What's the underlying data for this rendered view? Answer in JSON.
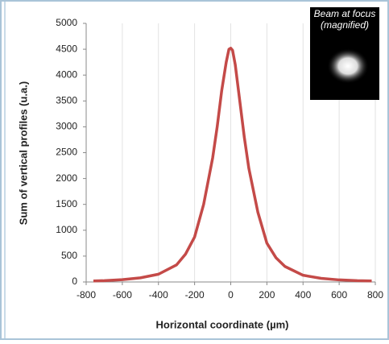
{
  "chart_data": {
    "type": "line",
    "xlabel": "Horizontal coordinate  (µm)",
    "ylabel": "Sum of vertical profiles (u.a.)",
    "inset_label": [
      "Beam at focus",
      "(magnified)"
    ],
    "x": [
      -760,
      -700,
      -600,
      -500,
      -400,
      -300,
      -250,
      -200,
      -150,
      -100,
      -75,
      -50,
      -25,
      -10,
      0,
      10,
      25,
      50,
      75,
      100,
      150,
      200,
      250,
      300,
      400,
      500,
      600,
      700,
      780
    ],
    "series": [
      {
        "color": "#c44a48",
        "values": [
          20,
          25,
          45,
          80,
          150,
          330,
          540,
          870,
          1500,
          2400,
          3000,
          3700,
          4250,
          4500,
          4520,
          4480,
          4200,
          3500,
          2800,
          2200,
          1350,
          750,
          470,
          300,
          130,
          70,
          40,
          25,
          20
        ]
      }
    ],
    "xlim": [
      -800,
      800
    ],
    "xticks": [
      -800,
      -600,
      -400,
      -200,
      0,
      200,
      400,
      600,
      800
    ],
    "ylim": [
      0,
      5000
    ],
    "yticks": [
      0,
      500,
      1000,
      1500,
      2000,
      2500,
      3000,
      3500,
      4000,
      4500,
      5000
    ],
    "grid": "x"
  }
}
